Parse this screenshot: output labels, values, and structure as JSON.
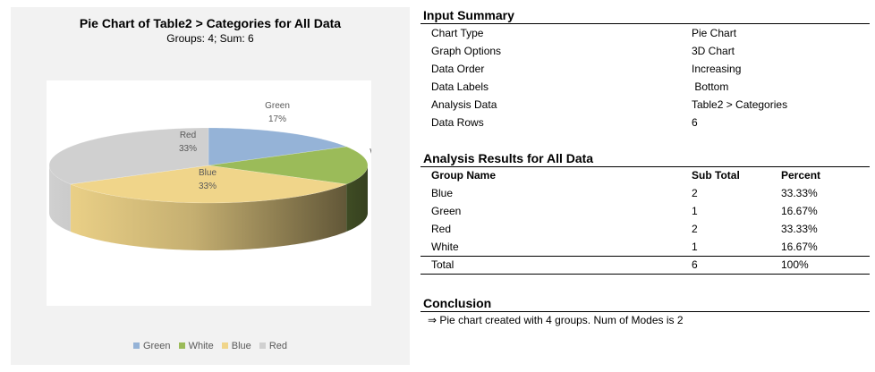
{
  "chart": {
    "title": "Pie Chart of Table2 > Categories for All Data",
    "subtitle": "Groups: 4; Sum: 6"
  },
  "chart_data": {
    "type": "pie",
    "style": "3D",
    "title": "Pie Chart of Table2 > Categories for All Data",
    "subtitle": "Groups: 4; Sum: 6",
    "categories": [
      "Green",
      "White",
      "Blue",
      "Red"
    ],
    "values": [
      1,
      1,
      2,
      2
    ],
    "percent_labels": [
      "17%",
      "17%",
      "33%",
      "33%"
    ],
    "colors": [
      "#95b3d7",
      "#9bbb59",
      "#f0d58a",
      "#d0d0d0"
    ],
    "legend": "bottom",
    "legend_entries": [
      {
        "label": "Green",
        "color": "#95b3d7"
      },
      {
        "label": "White",
        "color": "#9bbb59"
      },
      {
        "label": "Blue",
        "color": "#f0d58a"
      },
      {
        "label": "Red",
        "color": "#d0d0d0"
      }
    ]
  },
  "input_summary": {
    "title": "Input Summary",
    "rows": [
      {
        "label": "Chart Type",
        "value": "Pie Chart"
      },
      {
        "label": "Graph Options",
        "value": "3D Chart"
      },
      {
        "label": "Data Order",
        "value": "Increasing"
      },
      {
        "label": "Data Labels",
        "value": " Bottom"
      },
      {
        "label": "Analysis Data",
        "value": "Table2 > Categories"
      },
      {
        "label": "Data Rows",
        "value": "6"
      }
    ]
  },
  "analysis_results": {
    "title": "Analysis Results for All Data",
    "headers": [
      "Group Name",
      "Sub Total",
      "Percent"
    ],
    "rows": [
      {
        "group": "Blue",
        "subtotal": "2",
        "percent": "33.33%"
      },
      {
        "group": "Green",
        "subtotal": "1",
        "percent": "16.67%"
      },
      {
        "group": "Red",
        "subtotal": "2",
        "percent": "33.33%"
      },
      {
        "group": "White",
        "subtotal": "1",
        "percent": "16.67%"
      }
    ],
    "total": {
      "group": "Total",
      "subtotal": "6",
      "percent": "100%"
    }
  },
  "conclusion": {
    "title": "Conclusion",
    "text": "⇒ Pie chart created with 4 groups. Num of Modes is 2"
  }
}
